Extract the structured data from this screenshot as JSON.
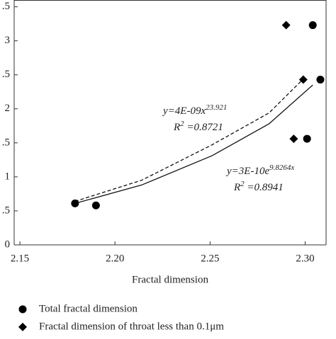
{
  "chart_data": {
    "type": "scatter",
    "xlabel": "Fractal dimension",
    "xlim": [
      2.147,
      2.311
    ],
    "ylim": [
      0,
      3.6
    ],
    "xticks": [
      {
        "value": 2.15,
        "label": "2.15"
      },
      {
        "value": 2.2,
        "label": "2.20"
      },
      {
        "value": 2.25,
        "label": "2.25"
      },
      {
        "value": 2.3,
        "label": "2.30"
      }
    ],
    "yticks": [
      0,
      {
        "value": 0.5,
        "label": ".5"
      },
      1,
      {
        "value": 1.5,
        "label": ".5"
      },
      2,
      {
        "value": 2.5,
        "label": ".5"
      },
      3,
      {
        "value": 3.5,
        "label": ".5"
      }
    ],
    "series": [
      {
        "name": "Total fractal dimension",
        "marker": "circle",
        "color": "#000000",
        "x": [
          2.179,
          2.19,
          2.304,
          2.301,
          2.308
        ],
        "values": [
          0.61,
          0.58,
          3.23,
          1.56,
          2.43
        ]
      },
      {
        "name": "Fractal dimension of throat less than 0.1μm",
        "marker": "diamond",
        "color": "#000000",
        "x": [
          2.29,
          2.294,
          2.299
        ],
        "values": [
          3.23,
          1.56,
          2.43
        ]
      }
    ],
    "trendlines": [
      {
        "dash": true,
        "x": [
          2.179,
          2.214,
          2.251,
          2.281,
          2.298
        ],
        "values": [
          0.64,
          0.95,
          1.47,
          1.94,
          2.41
        ]
      },
      {
        "dash": false,
        "x": [
          2.179,
          2.214,
          2.251,
          2.281,
          2.304
        ],
        "values": [
          0.61,
          0.88,
          1.31,
          1.78,
          2.35
        ]
      }
    ],
    "annotations": [
      {
        "base": "y=4E-09x",
        "exponent": "23.921"
      },
      {
        "base": "R",
        "exponent": "2",
        "rest": " =0.8721"
      },
      {
        "base": "y=3E-10e",
        "exponent": "9.8264x"
      },
      {
        "base": "R",
        "exponent": "2",
        "rest": " =0.8941"
      }
    ]
  }
}
